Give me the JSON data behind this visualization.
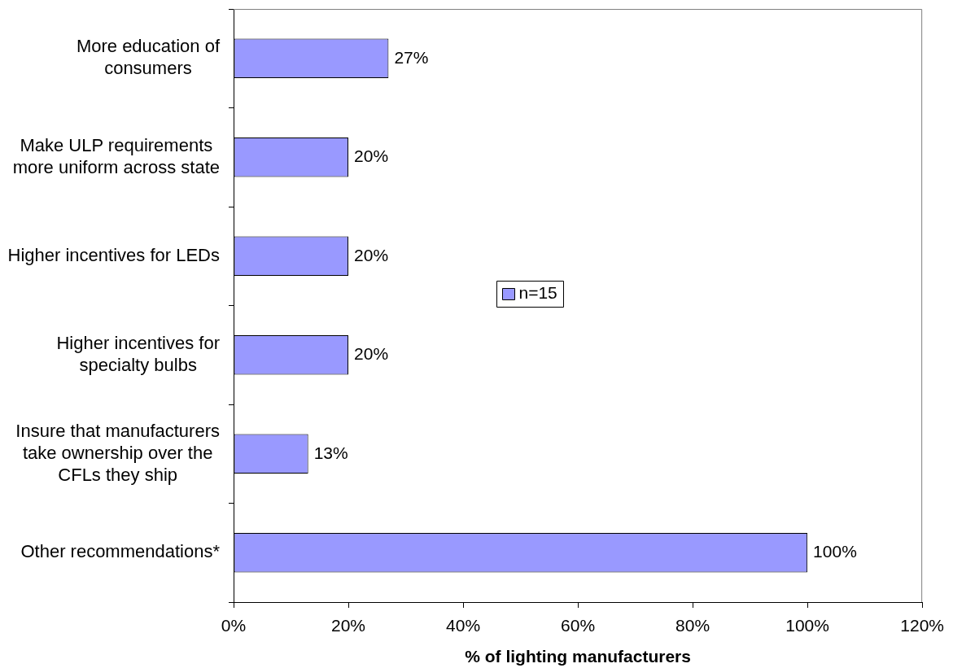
{
  "chart_data": {
    "type": "bar",
    "orientation": "horizontal",
    "categories": [
      "More education of consumers",
      "Make ULP requirements more uniform across state",
      "Higher incentives for LEDs",
      "Higher incentives for specialty bulbs",
      "Insure that manufacturers take ownership over the CFLs they ship",
      "Other recommendations*"
    ],
    "series": [
      {
        "name": "n=15",
        "color": "#9999ff",
        "values": [
          27,
          20,
          20,
          20,
          13,
          100
        ],
        "value_labels": [
          "27%",
          "20%",
          "20%",
          "20%",
          "13%",
          "100%"
        ]
      }
    ],
    "xlabel": "% of lighting manufacturers",
    "xlim": [
      0,
      120
    ],
    "xticks": [
      {
        "value": 0,
        "label": "0%"
      },
      {
        "value": 20,
        "label": "20%"
      },
      {
        "value": 40,
        "label": "40%"
      },
      {
        "value": 60,
        "label": "60%"
      },
      {
        "value": 80,
        "label": "80%"
      },
      {
        "value": 100,
        "label": "100%"
      },
      {
        "value": 120,
        "label": "120%"
      }
    ],
    "legend": "center"
  }
}
